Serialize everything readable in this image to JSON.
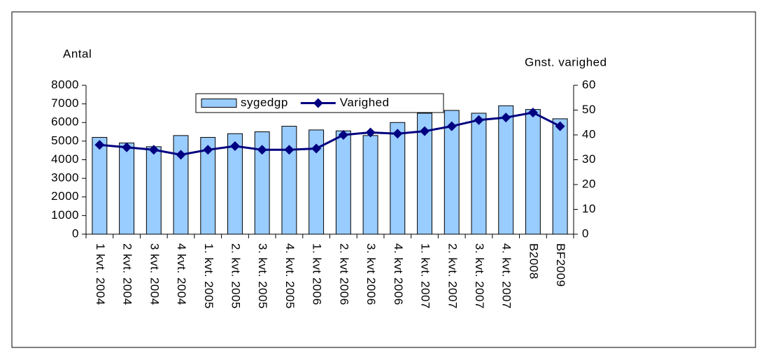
{
  "chart_data": {
    "type": "bar",
    "y_label": "Antal",
    "y2_label": "Gnst. varighed",
    "categories": [
      "1 kvt. 2004",
      "2 kvt. 2004",
      "3 kvt. 2004",
      "4 kvt. 2004",
      "1. kvt. 2005",
      "2. kvt. 2005",
      "3. kvt. 2005",
      "4. kvt. 2005",
      "1. kvt 2006",
      "2. kvt 2006",
      "3. kvt 2006",
      "4. kvt 2006",
      "1. kvt. 2007",
      "2. kvt. 2007",
      "3. kvt. 2007",
      "4. kvt. 2007",
      "B2008",
      "BF2009"
    ],
    "series": [
      {
        "name": "sygedgp",
        "type": "bar",
        "color": "#99ccff",
        "values": [
          5200,
          4900,
          4700,
          5300,
          5200,
          5400,
          5500,
          5800,
          5600,
          5550,
          5300,
          6000,
          6500,
          6650,
          6500,
          6900,
          6700,
          6200
        ]
      },
      {
        "name": "Varighed",
        "type": "line",
        "axis": "y2",
        "color": "#000080",
        "values": [
          36,
          35,
          34,
          32,
          34,
          35.5,
          34,
          34,
          34.5,
          40,
          41,
          40.5,
          41.5,
          43.5,
          46,
          47,
          49,
          43.5
        ]
      }
    ],
    "ylim": [
      0,
      8000
    ],
    "yticks": [
      0,
      1000,
      2000,
      3000,
      4000,
      5000,
      6000,
      7000,
      8000
    ],
    "y2lim": [
      0,
      60
    ],
    "y2ticks": [
      0,
      10,
      20,
      30,
      40,
      50,
      60
    ],
    "legend": "top"
  }
}
